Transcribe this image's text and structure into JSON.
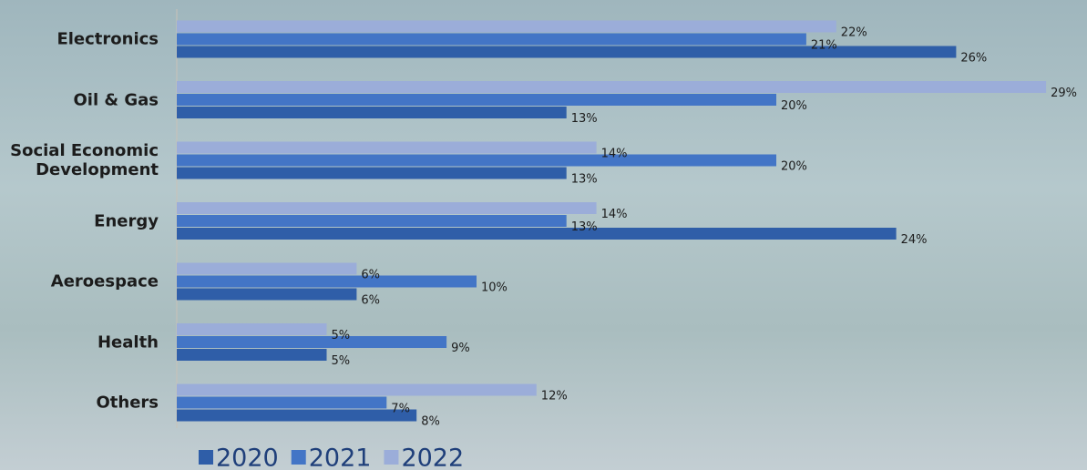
{
  "chart_data": {
    "type": "bar",
    "orientation": "horizontal",
    "categories": [
      "Electronics",
      "Oil & Gas",
      "Social Economic Development",
      "Energy",
      "Aeroespace",
      "Health",
      "Others"
    ],
    "series": [
      {
        "name": "2020",
        "color": "#2f5ea8",
        "values": [
          26,
          13,
          13,
          24,
          6,
          5,
          8
        ],
        "value_labels": [
          "26%",
          "13%",
          "13%",
          "24%",
          "6%",
          "5%",
          "8%"
        ]
      },
      {
        "name": "2021",
        "color": "#4375c6",
        "values": [
          21,
          20,
          20,
          13,
          10,
          9,
          7
        ],
        "value_labels": [
          "21%",
          "20%",
          "20%",
          "13%",
          "10%",
          "9%",
          "7%"
        ]
      },
      {
        "name": "2022",
        "color": "#9badd9",
        "values": [
          22,
          29,
          14,
          14,
          6,
          5,
          12
        ],
        "value_labels": [
          "22%",
          "29%",
          "14%",
          "14%",
          "6%",
          "5%",
          "12%"
        ]
      }
    ],
    "xlim": [
      0,
      30
    ]
  }
}
